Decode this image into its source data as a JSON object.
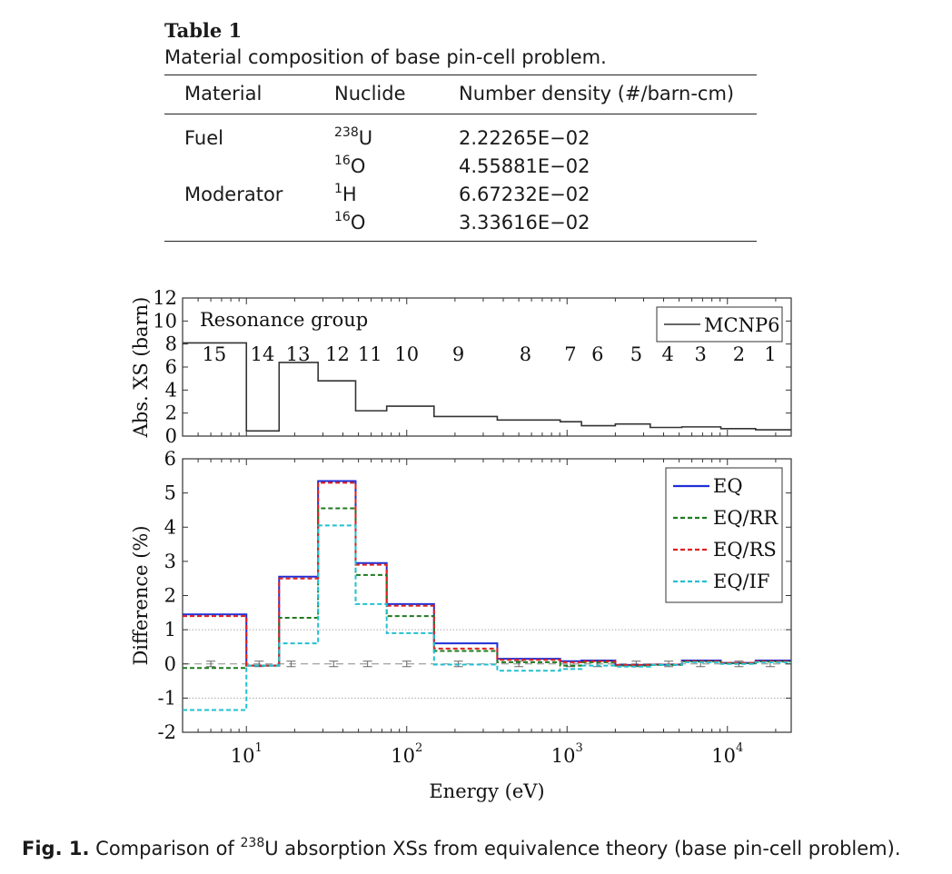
{
  "table": {
    "label": "Table 1",
    "caption": "Material composition of base pin-cell problem.",
    "headers": [
      "Material",
      "Nuclide",
      "Number density (#/barn-cm)"
    ],
    "rows": [
      {
        "material": "Fuel",
        "nuclide_mass": "238",
        "nuclide_symbol": "U",
        "density": "2.22265E−02"
      },
      {
        "material": "",
        "nuclide_mass": "16",
        "nuclide_symbol": "O",
        "density": "4.55881E−02"
      },
      {
        "material": "Moderator",
        "nuclide_mass": "1",
        "nuclide_symbol": "H",
        "density": "6.67232E−02"
      },
      {
        "material": "",
        "nuclide_mass": "16",
        "nuclide_symbol": "O",
        "density": "3.33616E−02"
      }
    ]
  },
  "figure": {
    "caption_label": "Fig. 1.",
    "caption_pre": "Comparison of",
    "caption_sup": "238",
    "caption_post": "U absorption XSs from equivalence theory (base pin-cell problem)."
  },
  "chart_data": [
    {
      "type": "line",
      "step": true,
      "ylabel": "Abs. XS (barn)",
      "xscale": "log",
      "xlim": [
        4,
        25000
      ],
      "ylim": [
        0,
        12
      ],
      "yticks": [
        0,
        2,
        4,
        6,
        8,
        10,
        12
      ],
      "annotation": "Resonance group",
      "legend_position": "top-right",
      "group_labels": [
        {
          "label": "15",
          "x": 6.3
        },
        {
          "label": "14",
          "x": 12.6
        },
        {
          "label": "13",
          "x": 21
        },
        {
          "label": "12",
          "x": 37
        },
        {
          "label": "11",
          "x": 59
        },
        {
          "label": "10",
          "x": 100
        },
        {
          "label": "9",
          "x": 210
        },
        {
          "label": "8",
          "x": 550
        },
        {
          "label": "7",
          "x": 1050
        },
        {
          "label": "6",
          "x": 1550
        },
        {
          "label": "5",
          "x": 2700
        },
        {
          "label": "4",
          "x": 4250
        },
        {
          "label": "3",
          "x": 6800
        },
        {
          "label": "2",
          "x": 11800
        },
        {
          "label": "1",
          "x": 18500
        }
      ],
      "series": [
        {
          "name": "MCNP6",
          "color": "#333333",
          "edges": [
            4,
            10,
            16,
            28,
            48,
            75,
            148,
            367,
            906,
            1230,
            2000,
            3300,
            5200,
            9100,
            15000,
            25000
          ],
          "values": [
            8.1,
            0.45,
            6.4,
            4.8,
            2.2,
            2.6,
            1.7,
            1.4,
            1.25,
            0.9,
            1.05,
            0.75,
            0.8,
            0.65,
            0.55
          ]
        }
      ]
    },
    {
      "type": "line",
      "step": true,
      "xlabel": "Energy (eV)",
      "ylabel": "Difference (%)",
      "xscale": "log",
      "xlim": [
        4,
        25000
      ],
      "ylim": [
        -2,
        6
      ],
      "yticks": [
        -2,
        -1,
        0,
        1,
        2,
        3,
        4,
        5,
        6
      ],
      "xticks": [
        10,
        100,
        1000,
        10000
      ],
      "xtick_labels": [
        {
          "base": "10",
          "exp": "1"
        },
        {
          "base": "10",
          "exp": "2"
        },
        {
          "base": "10",
          "exp": "3"
        },
        {
          "base": "10",
          "exp": "4"
        }
      ],
      "reference_lines": [
        1,
        -1
      ],
      "error_bar_x": [
        6,
        12,
        19,
        35,
        57,
        100,
        210,
        500,
        1050,
        1550,
        2700,
        4300,
        6800,
        11800,
        18500
      ],
      "legend_position": "top-right",
      "grid": false,
      "series": [
        {
          "name": "EQ",
          "color": "#1f2fd6",
          "dash": "solid",
          "edges": [
            4,
            10,
            16,
            28,
            48,
            75,
            148,
            367,
            906,
            1230,
            2000,
            3300,
            5200,
            9100,
            15000,
            25000
          ],
          "values": [
            1.45,
            -0.05,
            2.55,
            5.35,
            2.95,
            1.75,
            0.6,
            0.15,
            0.08,
            0.1,
            -0.03,
            -0.02,
            0.1,
            0.03,
            0.1
          ]
        },
        {
          "name": "EQ/RR",
          "color": "#1e7a1e",
          "dash": "dashed",
          "edges": [
            4,
            10,
            16,
            28,
            48,
            75,
            148,
            367,
            906,
            1230,
            2000,
            3300,
            5200,
            9100,
            15000,
            25000
          ],
          "values": [
            -0.12,
            -0.05,
            1.35,
            4.55,
            2.6,
            1.4,
            0.38,
            0.05,
            -0.05,
            0.05,
            -0.05,
            -0.03,
            0.07,
            0.02,
            0.07
          ]
        },
        {
          "name": "EQ/RS",
          "color": "#e02020",
          "dash": "dashed",
          "edges": [
            4,
            10,
            16,
            28,
            48,
            75,
            148,
            367,
            906,
            1230,
            2000,
            3300,
            5200,
            9100,
            15000,
            25000
          ],
          "values": [
            1.4,
            -0.05,
            2.5,
            5.3,
            2.9,
            1.7,
            0.45,
            0.12,
            0.05,
            0.08,
            -0.03,
            -0.02,
            0.08,
            0.03,
            0.08
          ]
        },
        {
          "name": "EQ/IF",
          "color": "#22c0d0",
          "dash": "dashed",
          "edges": [
            4,
            10,
            16,
            28,
            48,
            75,
            148,
            367,
            906,
            1230,
            2000,
            3300,
            5200,
            9100,
            15000,
            25000
          ],
          "values": [
            -1.35,
            -0.05,
            0.6,
            4.05,
            1.75,
            0.9,
            -0.02,
            -0.2,
            -0.15,
            -0.05,
            -0.08,
            -0.03,
            0.05,
            0.0,
            0.05
          ]
        }
      ]
    }
  ]
}
